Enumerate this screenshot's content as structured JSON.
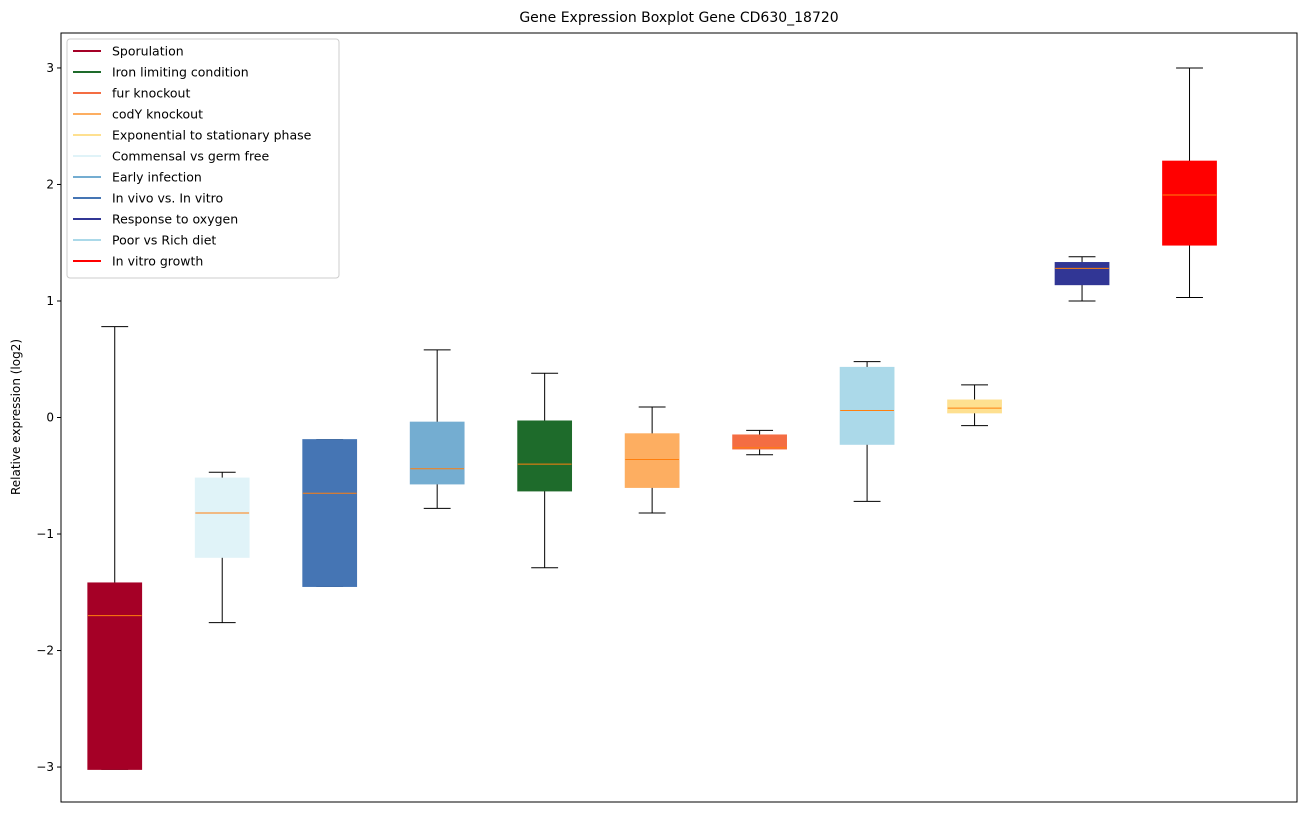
{
  "chart_data": {
    "type": "boxplot",
    "title": "Gene Expression Boxplot Gene CD630_18720",
    "xlabel": "",
    "ylabel": "Relative expression (log2)",
    "ylim": [
      -3.3,
      3.3
    ],
    "yticks": [
      3,
      2,
      1,
      0,
      -1,
      -2,
      -3
    ],
    "ytick_labels": [
      "3",
      "2",
      "1",
      "0",
      "−1",
      "−2",
      "−3"
    ],
    "grid": false,
    "legend_position": "top-left",
    "median_color": "#ff7f0e",
    "legend": [
      {
        "label": "Sporulation",
        "color": "#a50026"
      },
      {
        "label": "Iron limiting condition",
        "color": "#1e6b2b"
      },
      {
        "label": "fur knockout",
        "color": "#f46d43"
      },
      {
        "label": "codY knockout",
        "color": "#fdae61"
      },
      {
        "label": "Exponential to stationary phase",
        "color": "#fee090"
      },
      {
        "label": "Commensal vs germ free",
        "color": "#e0f3f8"
      },
      {
        "label": "Early infection",
        "color": "#74add1"
      },
      {
        "label": "In vivo vs. In vitro",
        "color": "#4575b4"
      },
      {
        "label": "Response to oxygen",
        "color": "#313695"
      },
      {
        "label": "Poor vs Rich diet",
        "color": "#abd9e9"
      },
      {
        "label": "In vitro growth",
        "color": "#ff0000"
      }
    ],
    "boxes": [
      {
        "condition": "Sporulation",
        "color": "#a50026",
        "whisker_low": -3.02,
        "q1": -3.02,
        "median": -1.7,
        "q3": -1.42,
        "whisker_high": 0.78
      },
      {
        "condition": "Commensal vs germ free",
        "color": "#e0f3f8",
        "whisker_low": -1.76,
        "q1": -1.2,
        "median": -0.82,
        "q3": -0.52,
        "whisker_high": -0.47
      },
      {
        "condition": "In vivo vs. In vitro",
        "color": "#4575b4",
        "whisker_low": -1.45,
        "q1": -1.45,
        "median": -0.65,
        "q3": -0.19,
        "whisker_high": -0.19
      },
      {
        "condition": "Early infection",
        "color": "#74add1",
        "whisker_low": -0.78,
        "q1": -0.57,
        "median": -0.44,
        "q3": -0.04,
        "whisker_high": 0.58
      },
      {
        "condition": "Iron limiting condition",
        "color": "#1e6b2b",
        "whisker_low": -1.29,
        "q1": -0.63,
        "median": -0.4,
        "q3": -0.03,
        "whisker_high": 0.38
      },
      {
        "condition": "codY knockout",
        "color": "#fdae61",
        "whisker_low": -0.82,
        "q1": -0.6,
        "median": -0.36,
        "q3": -0.14,
        "whisker_high": 0.09
      },
      {
        "condition": "fur knockout",
        "color": "#f46d43",
        "whisker_low": -0.32,
        "q1": -0.27,
        "median": -0.26,
        "q3": -0.15,
        "whisker_high": -0.11
      },
      {
        "condition": "Poor vs Rich diet",
        "color": "#abd9e9",
        "whisker_low": -0.72,
        "q1": -0.23,
        "median": 0.06,
        "q3": 0.43,
        "whisker_high": 0.48
      },
      {
        "condition": "Exponential to stationary phase",
        "color": "#fee090",
        "whisker_low": -0.07,
        "q1": 0.04,
        "median": 0.08,
        "q3": 0.15,
        "whisker_high": 0.28
      },
      {
        "condition": "Response to oxygen",
        "color": "#313695",
        "whisker_low": 1.0,
        "q1": 1.14,
        "median": 1.28,
        "q3": 1.33,
        "whisker_high": 1.38
      },
      {
        "condition": "In vitro growth",
        "color": "#ff0000",
        "whisker_low": 1.03,
        "q1": 1.48,
        "median": 1.91,
        "q3": 2.2,
        "whisker_high": 3.0
      }
    ]
  }
}
